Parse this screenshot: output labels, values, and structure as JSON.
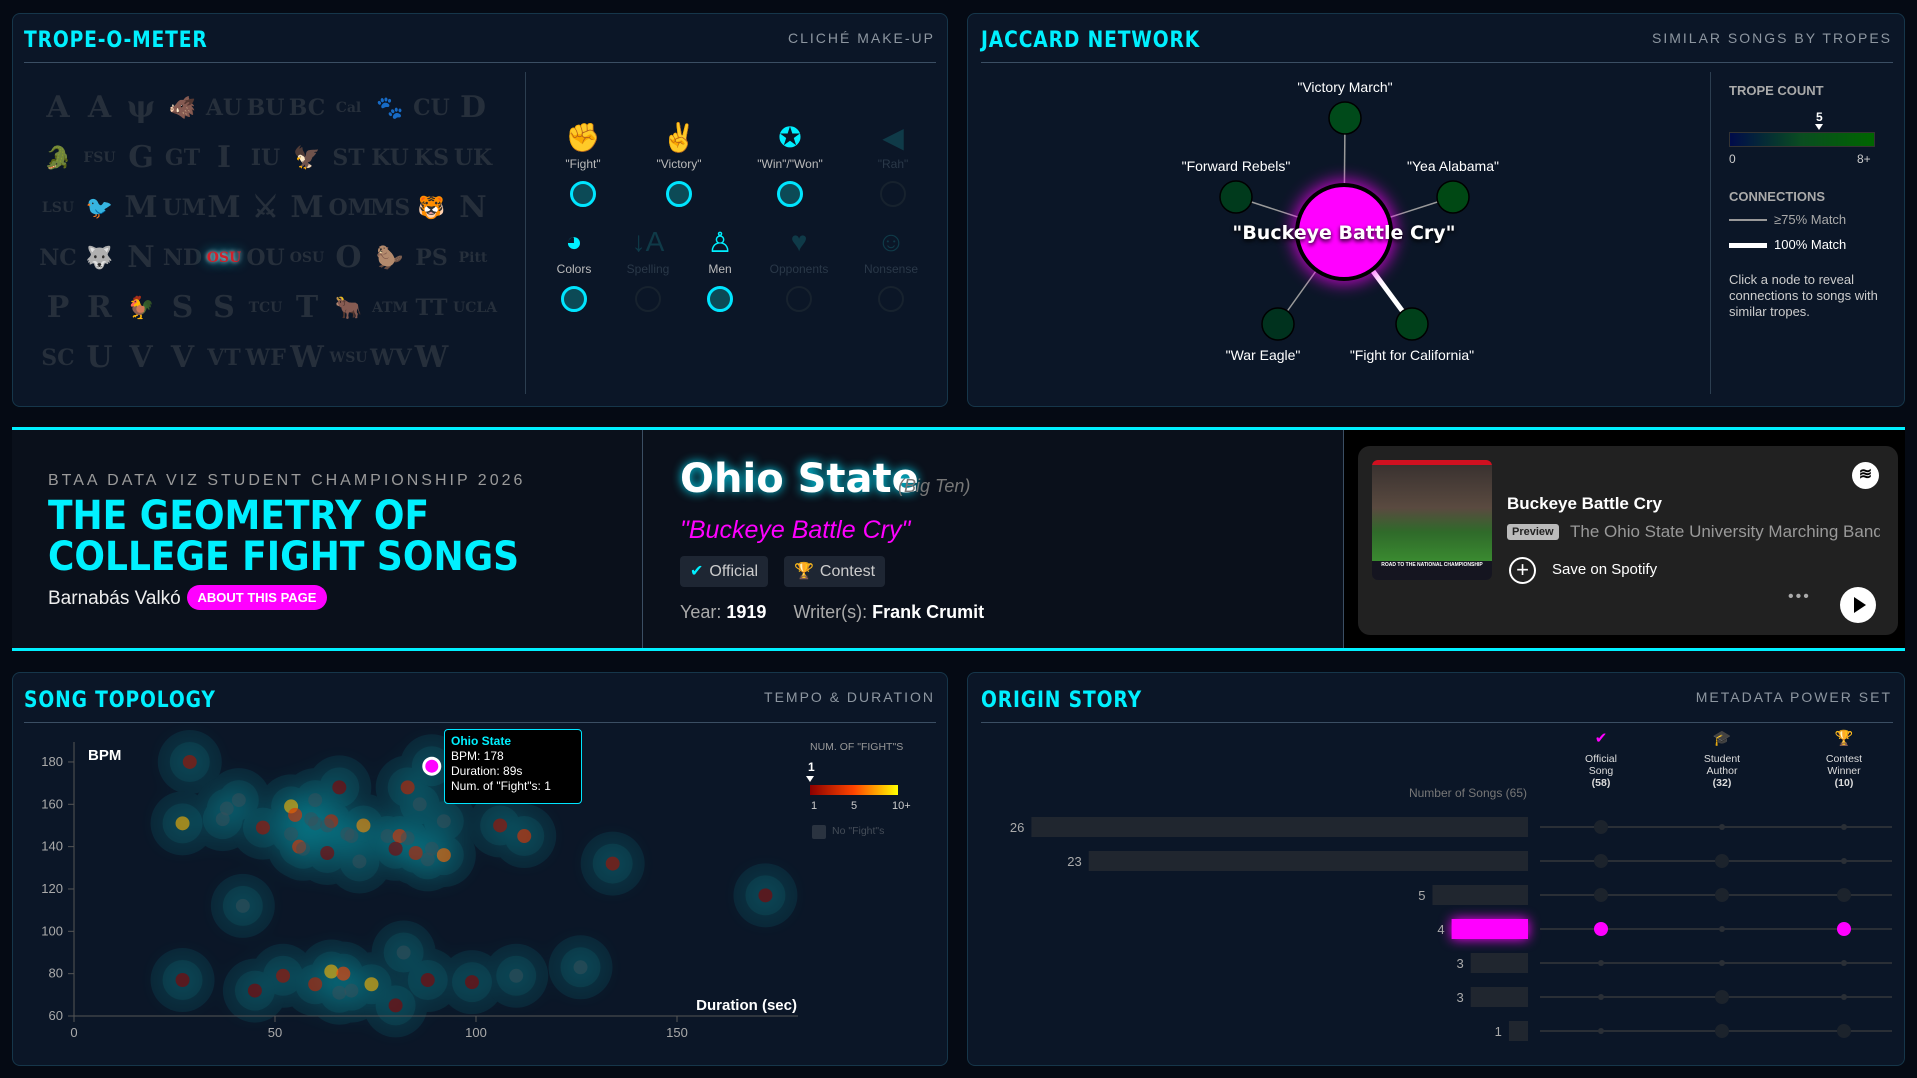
{
  "trope_panel": {
    "title": "TROPE-O-METER",
    "subtitle": "CLICHÉ MAKE-UP",
    "logos": [
      [
        "A",
        "A",
        "ψ",
        "🐗",
        "AU",
        "BU",
        "BC",
        "Cal",
        "🐾",
        "CU",
        "D"
      ],
      [
        "🐊",
        "FSU",
        "G",
        "GT",
        "I",
        "IU",
        "🦅",
        "ST",
        "KU",
        "KS",
        "UK"
      ],
      [
        "LSU",
        "🐦",
        "M",
        "UM",
        "M",
        "⚔",
        "M",
        "OM",
        "MS",
        "🐯",
        "N"
      ],
      [
        "NC",
        "🐺",
        "N",
        "ND",
        "OSU",
        "OU",
        "OSU",
        "O",
        "🦫",
        "PS",
        "Pitt"
      ],
      [
        "P",
        "R",
        "🐓",
        "S",
        "S",
        "TCU",
        "T",
        "🐂",
        "ATM",
        "TT",
        "UCLA"
      ],
      [
        "SC",
        "U",
        "V",
        "V",
        "VT",
        "WF",
        "W",
        "WSU",
        "WV",
        "W"
      ]
    ],
    "selected_logo": "OSU",
    "tropes": [
      {
        "label": "\"Fight\"",
        "icon": "✊",
        "icon_name": "fist-icon",
        "active": true
      },
      {
        "label": "\"Victory\"",
        "icon": "✌",
        "icon_name": "victory-hand-icon",
        "active": true
      },
      {
        "label": "\"Win\"/\"Won\"",
        "icon": "✪",
        "icon_name": "medal-icon",
        "active": true
      },
      {
        "label": "\"Rah\"",
        "icon": "◀",
        "icon_name": "megaphone-icon",
        "active": false
      },
      {
        "label": "Colors",
        "icon": "◕",
        "icon_name": "palette-icon",
        "active": true
      },
      {
        "label": "Spelling",
        "icon": "↓A",
        "icon_name": "sort-alpha-icon",
        "active": false
      },
      {
        "label": "Men",
        "icon": "♙",
        "icon_name": "person-icon",
        "active": true
      },
      {
        "label": "Opponents",
        "icon": "♥",
        "icon_name": "heart-pulse-icon",
        "active": false
      },
      {
        "label": "Nonsense",
        "icon": "☺",
        "icon_name": "smiley-icon",
        "active": false
      }
    ]
  },
  "network_panel": {
    "title": "JACCARD NETWORK",
    "subtitle": "SIMILAR SONGS BY TROPES",
    "center": "\"Buckeye Battle Cry\"",
    "nodes": [
      {
        "label": "\"Victory March\"",
        "match": "≥75%"
      },
      {
        "label": "\"Forward Rebels\"",
        "match": "≥75%"
      },
      {
        "label": "\"Yea Alabama\"",
        "match": "≥75%"
      },
      {
        "label": "\"War Eagle\"",
        "match": "≥75%"
      },
      {
        "label": "\"Fight for California\"",
        "match": "100%"
      }
    ],
    "legend": {
      "trope_count_title": "TROPE COUNT",
      "trope_count_value": "5",
      "trope_min": "0",
      "trope_max": "8+",
      "connections_title": "CONNECTIONS",
      "weak": "≥75% Match",
      "strong": "100% Match",
      "hint": "Click a node to reveal connections to songs with similar tropes."
    }
  },
  "header": {
    "kicker": "BTAA DATA VIZ STUDENT CHAMPIONSHIP 2026",
    "title_line1": "THE GEOMETRY OF",
    "title_line2": "COLLEGE FIGHT SONGS",
    "author": "Barnabás Valkó",
    "about_button": "ABOUT THIS PAGE"
  },
  "song": {
    "school": "Ohio State",
    "conference": "(Big Ten)",
    "title": "\"Buckeye Battle Cry\"",
    "badges": [
      {
        "label": "Official",
        "icon": "✔"
      },
      {
        "label": "Contest",
        "icon": "🏆"
      }
    ],
    "year_label": "Year:",
    "year": "1919",
    "writers_label": "Writer(s):",
    "writers": "Frank Crumit"
  },
  "spotify": {
    "track": "Buckeye Battle Cry",
    "preview": "Preview",
    "artist": "The Ohio State University Marching Band",
    "save": "Save on Spotify",
    "album_text": "ROAD TO THE NATIONAL CHAMPIONSHIP"
  },
  "topology_panel": {
    "title": "SONG TOPOLOGY",
    "subtitle": "TEMPO & DURATION",
    "tooltip": {
      "name": "Ohio State",
      "bpm": "BPM: 178",
      "duration": "Duration: 89s",
      "fights": "Num. of \"Fight\"s: 1"
    },
    "legend": {
      "title": "NUM. OF \"FIGHT\"S",
      "value": "1",
      "ticks": [
        "1",
        "5",
        "10+"
      ],
      "no_fights": "No \"Fight\"s"
    }
  },
  "origin_panel": {
    "title": "ORIGIN STORY",
    "subtitle": "METADATA POWER SET",
    "count_label": "Number of Songs (65)",
    "sets": [
      {
        "label1": "Official",
        "label2": "Song",
        "count": "(58)",
        "icon": "✔"
      },
      {
        "label1": "Student",
        "label2": "Author",
        "count": "(32)",
        "icon": "🎓"
      },
      {
        "label1": "Contest",
        "label2": "Winner",
        "count": "(10)",
        "icon": "🏆"
      }
    ]
  },
  "chart_data": [
    {
      "type": "scatter",
      "xlabel": "Duration (sec)",
      "ylabel": "BPM",
      "xticks": [
        0,
        50,
        100,
        150
      ],
      "yticks": [
        60,
        80,
        100,
        120,
        140,
        160,
        180
      ],
      "xlim": [
        0,
        193
      ],
      "ylim": [
        60,
        190
      ],
      "highlight": {
        "name": "Ohio State",
        "duration": 89,
        "bpm": 178,
        "fights": 1
      },
      "points": [
        [
          28.8,
          180,
          2
        ],
        [
          27,
          151,
          8
        ],
        [
          27,
          77,
          1
        ],
        [
          42,
          112,
          0
        ],
        [
          38,
          158,
          0
        ],
        [
          41,
          162,
          0
        ],
        [
          37,
          153,
          0
        ],
        [
          47,
          149,
          2
        ],
        [
          54,
          159,
          8
        ],
        [
          55,
          155,
          4
        ],
        [
          54,
          146,
          0
        ],
        [
          56,
          140,
          4
        ],
        [
          57,
          139,
          0
        ],
        [
          60,
          162,
          0
        ],
        [
          59,
          153,
          0
        ],
        [
          60,
          151,
          0
        ],
        [
          66,
          168,
          1
        ],
        [
          64,
          152,
          3
        ],
        [
          63,
          150,
          0
        ],
        [
          63,
          137,
          1
        ],
        [
          68,
          146,
          0
        ],
        [
          69,
          145,
          0
        ],
        [
          72,
          150,
          7
        ],
        [
          71,
          133,
          0
        ],
        [
          78,
          145,
          0
        ],
        [
          81,
          145,
          4
        ],
        [
          83,
          144,
          0
        ],
        [
          80,
          139,
          1
        ],
        [
          83,
          168,
          3
        ],
        [
          86,
          160,
          0
        ],
        [
          85,
          137,
          3
        ],
        [
          89,
          139,
          0
        ],
        [
          88,
          134,
          0
        ],
        [
          92,
          136,
          6
        ],
        [
          92,
          152,
          0
        ],
        [
          106,
          150,
          2
        ],
        [
          112,
          145,
          4
        ],
        [
          134,
          132,
          2
        ],
        [
          172,
          117,
          1
        ],
        [
          82,
          90,
          0
        ],
        [
          52,
          79,
          2
        ],
        [
          45,
          72,
          1
        ],
        [
          60,
          75,
          3
        ],
        [
          64,
          81,
          8
        ],
        [
          67,
          80,
          5
        ],
        [
          66,
          71,
          0
        ],
        [
          69,
          72,
          0
        ],
        [
          74,
          75,
          8
        ],
        [
          80,
          65,
          1
        ],
        [
          88,
          77,
          1
        ],
        [
          99,
          76,
          1
        ],
        [
          110,
          79,
          0
        ],
        [
          126,
          83,
          0
        ]
      ],
      "point_fields": [
        "duration",
        "bpm",
        "fights"
      ],
      "colors": {
        "fight_low": "#8b0000",
        "fight_mid": "#ff4500",
        "fight_high": "#ffff00",
        "none": "#3a4f5a"
      }
    },
    {
      "type": "bar",
      "title": "Number of Songs (65)",
      "rows": [
        {
          "count": 26,
          "sets": [
            1,
            0,
            0
          ]
        },
        {
          "count": 23,
          "sets": [
            1,
            1,
            0
          ]
        },
        {
          "count": 5,
          "sets": [
            1,
            1,
            1
          ]
        },
        {
          "count": 4,
          "sets": [
            1,
            0,
            1
          ],
          "highlight": true
        },
        {
          "count": 3,
          "sets": [
            0,
            0,
            0
          ]
        },
        {
          "count": 3,
          "sets": [
            0,
            1,
            0
          ]
        },
        {
          "count": 1,
          "sets": [
            0,
            1,
            1
          ]
        }
      ]
    }
  ],
  "colors": {
    "accent": "#00f0ff",
    "highlight": "#ff00ff",
    "panel": "#0b1627"
  }
}
